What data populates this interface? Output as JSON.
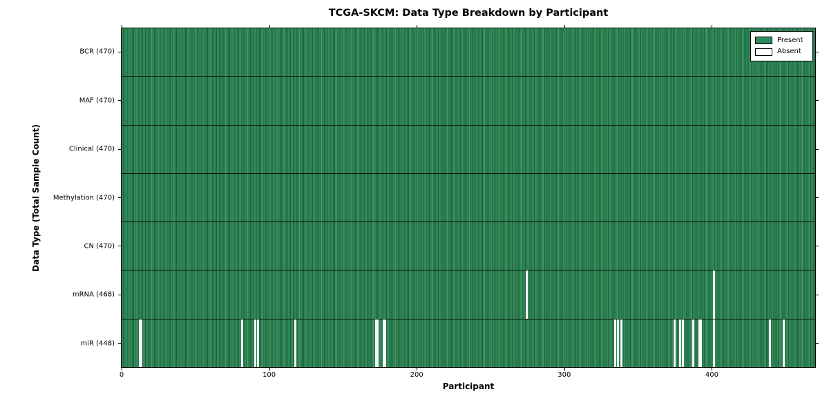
{
  "figure": {
    "title": "TCGA-SKCM: Data Type Breakdown by Participant",
    "xlabel": "Participant",
    "ylabel": "Data Type (Total Sample Count)"
  },
  "legend": {
    "present_label": "Present",
    "absent_label": "Absent"
  },
  "chart_data": {
    "type": "heatmap",
    "title": "TCGA-SKCM: Data Type Breakdown by Participant",
    "xlabel": "Participant",
    "ylabel": "Data Type (Total Sample Count)",
    "xlim": [
      0,
      470
    ],
    "xticks": [
      0,
      100,
      200,
      300,
      400
    ],
    "n_participants": 470,
    "grid": false,
    "legend_position": "upper right",
    "legend": [
      {
        "label": "Present",
        "color": "#2e8b57"
      },
      {
        "label": "Absent",
        "color": "#ffffff"
      }
    ],
    "colors": {
      "present": "#2e8b57",
      "absent": "#f7f7f7"
    },
    "rows": [
      {
        "name": "BCR",
        "label": "BCR (470)",
        "count": 470,
        "absent": []
      },
      {
        "name": "MAF",
        "label": "MAF (470)",
        "count": 470,
        "absent": []
      },
      {
        "name": "Clinical",
        "label": "Clinical (470)",
        "count": 470,
        "absent": []
      },
      {
        "name": "Methylation",
        "label": "Methylation (470)",
        "count": 470,
        "absent": []
      },
      {
        "name": "CN",
        "label": "CN (470)",
        "count": 470,
        "absent": []
      },
      {
        "name": "mRNA",
        "label": "mRNA (468)",
        "count": 468,
        "absent": [
          274,
          401
        ]
      },
      {
        "name": "miR",
        "label": "miR (448)",
        "count": 448,
        "absent": [
          12,
          13,
          81,
          90,
          92,
          117,
          172,
          173,
          177,
          178,
          334,
          336,
          338,
          374,
          378,
          380,
          387,
          391,
          392,
          401,
          439,
          448
        ]
      }
    ]
  }
}
